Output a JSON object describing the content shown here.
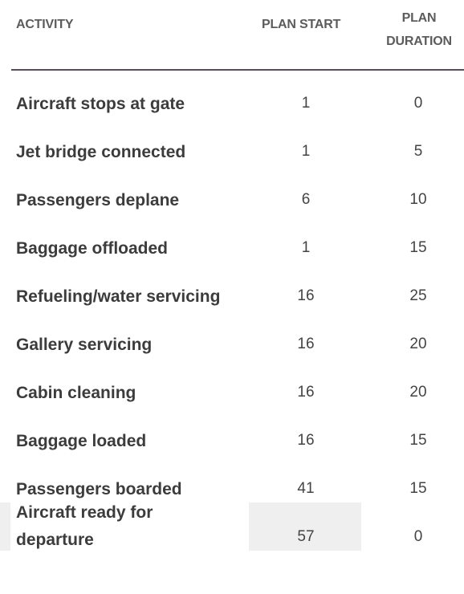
{
  "table": {
    "headers": {
      "activity": "ACTIVITY",
      "plan_start": "PLAN START",
      "plan_duration": "PLAN\nDURATION"
    },
    "rows": [
      {
        "activity": "Aircraft stops at gate",
        "plan_start": "1",
        "plan_duration": "0"
      },
      {
        "activity": "Jet bridge connected",
        "plan_start": "1",
        "plan_duration": "5"
      },
      {
        "activity": "Passengers deplane",
        "plan_start": "6",
        "plan_duration": "10"
      },
      {
        "activity": "Baggage offloaded",
        "plan_start": "1",
        "plan_duration": "15"
      },
      {
        "activity": "Refueling/water servicing",
        "plan_start": "16",
        "plan_duration": "25"
      },
      {
        "activity": "Gallery servicing",
        "plan_start": "16",
        "plan_duration": "20"
      },
      {
        "activity": "Cabin cleaning",
        "plan_start": "16",
        "plan_duration": "20"
      },
      {
        "activity": "Baggage loaded",
        "plan_start": "16",
        "plan_duration": "15"
      },
      {
        "activity": "Passengers boarded",
        "plan_start": "41",
        "plan_duration": "15"
      },
      {
        "activity": "Aircraft ready for\ndeparture",
        "plan_start": "57",
        "plan_duration": "0"
      }
    ]
  },
  "colors": {
    "header_text": "#5c5c5c",
    "body_text": "#3c3c3c",
    "rule": "#5e4a5e",
    "highlight_fill": "#efefef"
  }
}
